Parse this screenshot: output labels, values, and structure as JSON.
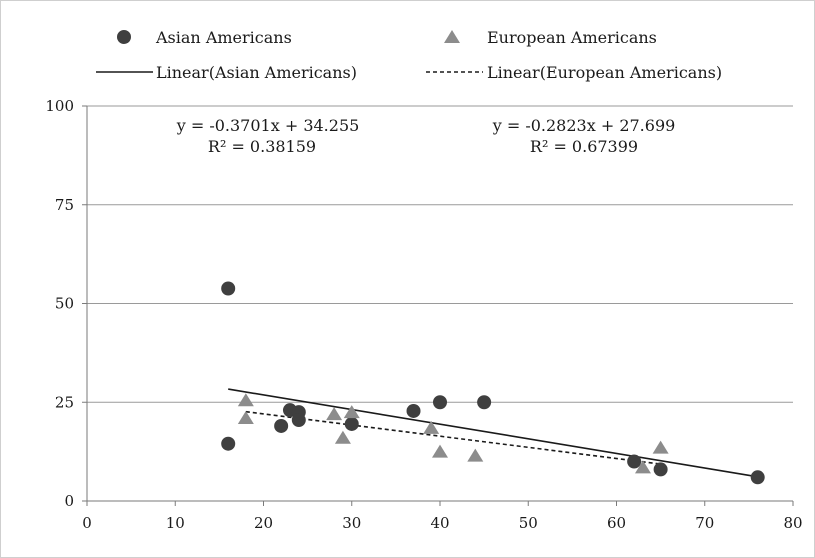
{
  "chart_data": {
    "type": "scatter",
    "xlim": [
      0,
      80
    ],
    "ylim": [
      0,
      100
    ],
    "x_ticks": [
      0,
      10,
      20,
      30,
      40,
      50,
      60,
      70,
      80
    ],
    "y_ticks": [
      0,
      25,
      50,
      75,
      100
    ],
    "x_tick_labels": [
      "0",
      "10",
      "20",
      "30",
      "40",
      "50",
      "60",
      "70",
      "80"
    ],
    "y_tick_labels": [
      "0",
      "25",
      "50",
      "75",
      "100"
    ],
    "grid": "horizontal",
    "legend_position": "top",
    "series": [
      {
        "name": "Asian Americans",
        "marker": "circle",
        "color": "#3f3f3f",
        "points": [
          [
            16,
            53.8
          ],
          [
            16,
            14.5
          ],
          [
            22,
            19
          ],
          [
            23,
            23
          ],
          [
            24,
            22.5
          ],
          [
            24,
            20.5
          ],
          [
            30,
            19.5
          ],
          [
            37,
            22.8
          ],
          [
            40,
            25
          ],
          [
            45,
            25
          ],
          [
            62,
            10
          ],
          [
            65,
            8
          ],
          [
            76,
            6
          ]
        ]
      },
      {
        "name": "European Americans",
        "marker": "triangle",
        "color": "#8c8c8c",
        "points": [
          [
            18,
            25.5
          ],
          [
            18,
            21
          ],
          [
            28,
            22
          ],
          [
            29,
            16
          ],
          [
            30,
            22.5
          ],
          [
            39,
            18.5
          ],
          [
            40,
            12.5
          ],
          [
            44,
            11.5
          ],
          [
            63,
            8.5
          ],
          [
            65,
            13.5
          ]
        ]
      }
    ],
    "trendlines": [
      {
        "name": "Linear(Asian Americans)",
        "style": "solid",
        "color": "#1a1a1a",
        "slope": -0.3701,
        "intercept": 34.255,
        "x_range": [
          16,
          76
        ],
        "equation": "y = -0.3701x + 34.255",
        "r2_label": "R² = 0.38159"
      },
      {
        "name": "Linear(European Americans)",
        "style": "dashed",
        "color": "#1a1a1a",
        "slope": -0.2823,
        "intercept": 27.699,
        "x_range": [
          18,
          65
        ],
        "equation": "y = -0.2823x + 27.699",
        "r2_label": "R² = 0.67399"
      }
    ]
  }
}
